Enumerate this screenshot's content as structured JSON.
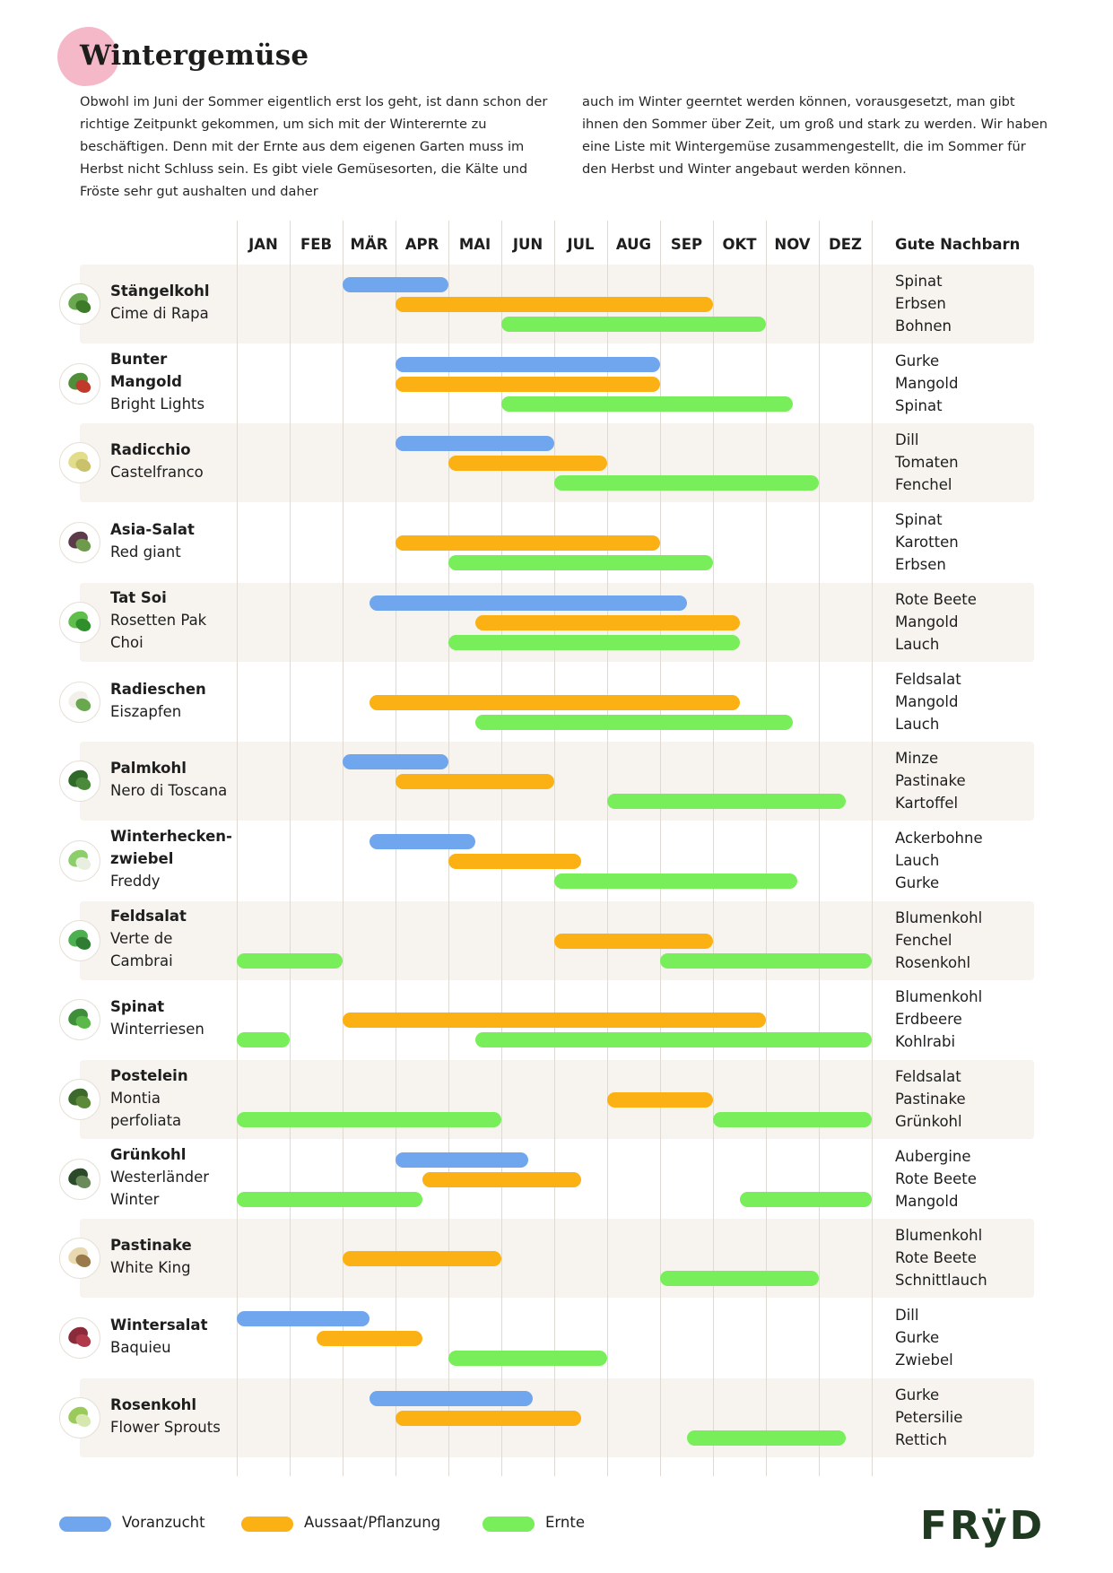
{
  "title": "Wintergemüse",
  "intro_left": "Obwohl im Juni der Sommer eigentlich erst los geht, ist dann schon der richtige Zeitpunkt gekommen, um sich mit der Winterernte zu beschäftigen. Denn mit der Ernte aus dem eigenen Garten muss im Herbst nicht Schluss sein. Es gibt viele Gemüsesorten, die Kälte und Fröste sehr gut aushalten und daher",
  "intro_right": "auch im Winter geerntet werden können, vorausgesetzt, man gibt ihnen den Sommer über Zeit, um groß und stark zu werden. Wir haben eine Liste mit Wintergemüse zusammengestellt, die im Sommer für den Herbst und Winter angebaut werden können.",
  "neighbors_header": "Gute Nachbarn",
  "logo": "FRÿD",
  "colors": {
    "voranzucht": "#6fa6ee",
    "aussaat": "#fbb113",
    "ernte": "#78ee5a",
    "row_band": "#f7f4ef",
    "title_blob": "#f5b8c9"
  },
  "legend": [
    {
      "key": "voranzucht",
      "label": "Voranzucht"
    },
    {
      "key": "aussaat",
      "label": "Aussaat/Pflanzung"
    },
    {
      "key": "ernte",
      "label": "Ernte"
    }
  ],
  "chart_data": {
    "type": "gantt",
    "months": [
      "JAN",
      "FEB",
      "MÄR",
      "APR",
      "MAI",
      "JUN",
      "JUL",
      "AUG",
      "SEP",
      "OKT",
      "NOV",
      "DEZ"
    ],
    "x_unit": "month (1 = Anfang Januar, 13 = Ende Dezember)",
    "rows": [
      {
        "name": "Stängelkohl",
        "variety": "Cime di Rapa",
        "icon": "stem-kale-icon",
        "neighbors": [
          "Spinat",
          "Erbsen",
          "Bohnen"
        ],
        "voranzucht": [
          [
            3,
            5
          ]
        ],
        "aussaat": [
          [
            4,
            10
          ]
        ],
        "ernte": [
          [
            6,
            11
          ]
        ]
      },
      {
        "name": "Bunter Mangold",
        "variety": "Bright Lights",
        "icon": "chard-icon",
        "neighbors": [
          "Gurke",
          "Mangold",
          "Spinat"
        ],
        "voranzucht": [
          [
            4,
            9
          ]
        ],
        "aussaat": [
          [
            4,
            9
          ]
        ],
        "ernte": [
          [
            6,
            11.5
          ]
        ]
      },
      {
        "name": "Radicchio",
        "variety": "Castelfranco",
        "icon": "radicchio-icon",
        "neighbors": [
          "Dill",
          "Tomaten",
          "Fenchel"
        ],
        "voranzucht": [
          [
            4,
            7
          ]
        ],
        "aussaat": [
          [
            5,
            8
          ]
        ],
        "ernte": [
          [
            7,
            12
          ]
        ]
      },
      {
        "name": "Asia-Salat",
        "variety": "Red giant",
        "icon": "asia-lettuce-icon",
        "neighbors": [
          "Spinat",
          "Karotten",
          "Erbsen"
        ],
        "voranzucht": [],
        "aussaat": [
          [
            4,
            9
          ]
        ],
        "ernte": [
          [
            5,
            10
          ]
        ]
      },
      {
        "name": "Tat Soi",
        "variety": "Rosetten Pak Choi",
        "icon": "tatsoi-icon",
        "neighbors": [
          "Rote Beete",
          "Mangold",
          "Lauch"
        ],
        "voranzucht": [
          [
            3.5,
            9.5
          ]
        ],
        "aussaat": [
          [
            5.5,
            10.5
          ]
        ],
        "ernte": [
          [
            5,
            10.5
          ]
        ]
      },
      {
        "name": "Radieschen",
        "variety": "Eiszapfen",
        "icon": "radish-icon",
        "neighbors": [
          "Feldsalat",
          "Mangold",
          "Lauch"
        ],
        "voranzucht": [],
        "aussaat": [
          [
            3.5,
            10.5
          ]
        ],
        "ernte": [
          [
            5.5,
            11.5
          ]
        ]
      },
      {
        "name": "Palmkohl",
        "variety": "Nero di Toscana",
        "icon": "palm-kale-icon",
        "neighbors": [
          "Minze",
          "Pastinake",
          "Kartoffel"
        ],
        "voranzucht": [
          [
            3,
            5
          ]
        ],
        "aussaat": [
          [
            4,
            7
          ]
        ],
        "ernte": [
          [
            8,
            12.5
          ]
        ]
      },
      {
        "name": "Winterhecken-zwiebel",
        "variety": "Freddy",
        "icon": "onion-icon",
        "neighbors": [
          "Ackerbohne",
          "Lauch",
          "Gurke"
        ],
        "voranzucht": [
          [
            3.5,
            5.5
          ]
        ],
        "aussaat": [
          [
            5,
            7.5
          ]
        ],
        "ernte": [
          [
            7,
            11.6
          ]
        ]
      },
      {
        "name": "Feldsalat",
        "variety": "Verte de Cambrai",
        "icon": "lambs-lettuce-icon",
        "neighbors": [
          "Blumenkohl",
          "Fenchel",
          "Rosenkohl"
        ],
        "voranzucht": [],
        "aussaat": [
          [
            7,
            10
          ]
        ],
        "ernte": [
          [
            1,
            3
          ],
          [
            9,
            13
          ]
        ]
      },
      {
        "name": "Spinat",
        "variety": "Winterriesen",
        "icon": "spinach-icon",
        "neighbors": [
          "Blumenkohl",
          "Erdbeere",
          "Kohlrabi"
        ],
        "voranzucht": [],
        "aussaat": [
          [
            3,
            11
          ]
        ],
        "ernte": [
          [
            1,
            2
          ],
          [
            5.5,
            13
          ]
        ]
      },
      {
        "name": "Postelein",
        "variety": "Montia perfoliata",
        "icon": "purslane-icon",
        "neighbors": [
          "Feldsalat",
          "Pastinake",
          "Grünkohl"
        ],
        "voranzucht": [],
        "aussaat": [
          [
            8,
            10
          ]
        ],
        "ernte": [
          [
            1,
            6
          ],
          [
            10,
            13
          ]
        ]
      },
      {
        "name": "Grünkohl",
        "variety": "Westerländer Winter",
        "icon": "kale-icon",
        "neighbors": [
          "Aubergine",
          "Rote Beete",
          "Mangold"
        ],
        "voranzucht": [
          [
            4,
            6.5
          ]
        ],
        "aussaat": [
          [
            4.5,
            7.5
          ]
        ],
        "ernte": [
          [
            1,
            4.5
          ],
          [
            10.5,
            13
          ]
        ]
      },
      {
        "name": "Pastinake",
        "variety": "White King",
        "icon": "parsnip-icon",
        "neighbors": [
          "Blumenkohl",
          "Rote Beete",
          "Schnittlauch"
        ],
        "voranzucht": [],
        "aussaat": [
          [
            3,
            6
          ]
        ],
        "ernte": [
          [
            9,
            12
          ]
        ]
      },
      {
        "name": "Wintersalat",
        "variety": "Baquieu",
        "icon": "winter-lettuce-icon",
        "neighbors": [
          "Dill",
          "Gurke",
          "Zwiebel"
        ],
        "voranzucht": [
          [
            1,
            3.5
          ]
        ],
        "aussaat": [
          [
            2.5,
            4.5
          ]
        ],
        "ernte": [
          [
            5,
            8
          ]
        ]
      },
      {
        "name": "Rosenkohl",
        "variety": "Flower Sprouts",
        "icon": "sprouts-icon",
        "neighbors": [
          "Gurke",
          "Petersilie",
          "Rettich"
        ],
        "voranzucht": [
          [
            3.5,
            6.6
          ]
        ],
        "aussaat": [
          [
            4,
            7.5
          ]
        ],
        "ernte": [
          [
            9.5,
            12.5
          ]
        ]
      }
    ]
  }
}
